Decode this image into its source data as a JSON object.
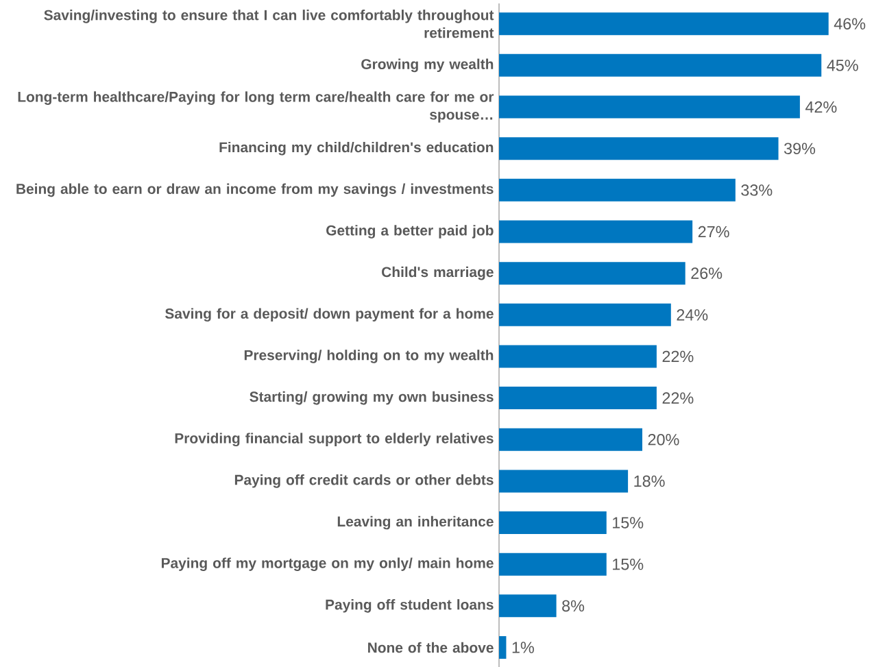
{
  "chart_data": {
    "type": "bar",
    "orientation": "horizontal",
    "categories": [
      "Saving/investing to ensure that I can live comfortably throughout retirement",
      "Growing my wealth",
      "Long-term healthcare/Paying for long term care/health care for me or spouse…",
      "Financing my child/children's education",
      "Being able to earn or draw an income from my savings / investments",
      "Getting a better paid job",
      "Child's marriage",
      "Saving for a deposit/ down payment for a home",
      "Preserving/ holding on to my wealth",
      "Starting/ growing my own business",
      "Providing financial support to elderly relatives",
      "Paying off credit cards or other debts",
      "Leaving an inheritance",
      "Paying off my mortgage on my only/ main home",
      "Paying off student loans",
      "None of the above"
    ],
    "values": [
      46,
      45,
      42,
      39,
      33,
      27,
      26,
      24,
      22,
      22,
      20,
      18,
      15,
      15,
      8,
      1
    ],
    "value_labels": [
      "46%",
      "45%",
      "42%",
      "39%",
      "33%",
      "27%",
      "26%",
      "24%",
      "22%",
      "22%",
      "20%",
      "18%",
      "15%",
      "15%",
      "8%",
      "1%"
    ],
    "color": "#0077c0"
  }
}
